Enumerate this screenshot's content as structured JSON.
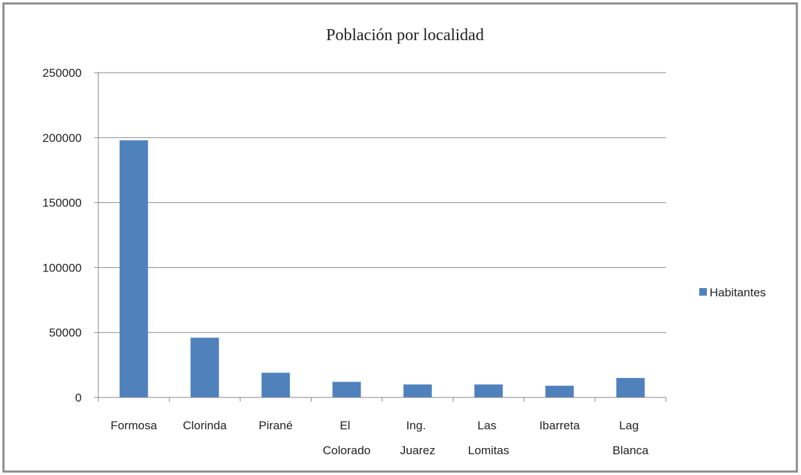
{
  "chart_data": {
    "type": "bar",
    "title": "Población por localidad",
    "categories": [
      "Formosa",
      "Clorinda",
      "Pirané",
      "El Colorado",
      "Ing. Juarez",
      "Las Lomitas",
      "Ibarreta",
      "Lag Blanca"
    ],
    "series": [
      {
        "name": "Habitantes",
        "color": "#4f81bd",
        "values": [
          198000,
          46000,
          19000,
          12000,
          10000,
          10000,
          9000,
          15000
        ]
      }
    ],
    "ylim": [
      0,
      250000
    ],
    "yticks": [
      0,
      50000,
      100000,
      150000,
      200000,
      250000
    ],
    "grid": true,
    "legend": "right"
  }
}
